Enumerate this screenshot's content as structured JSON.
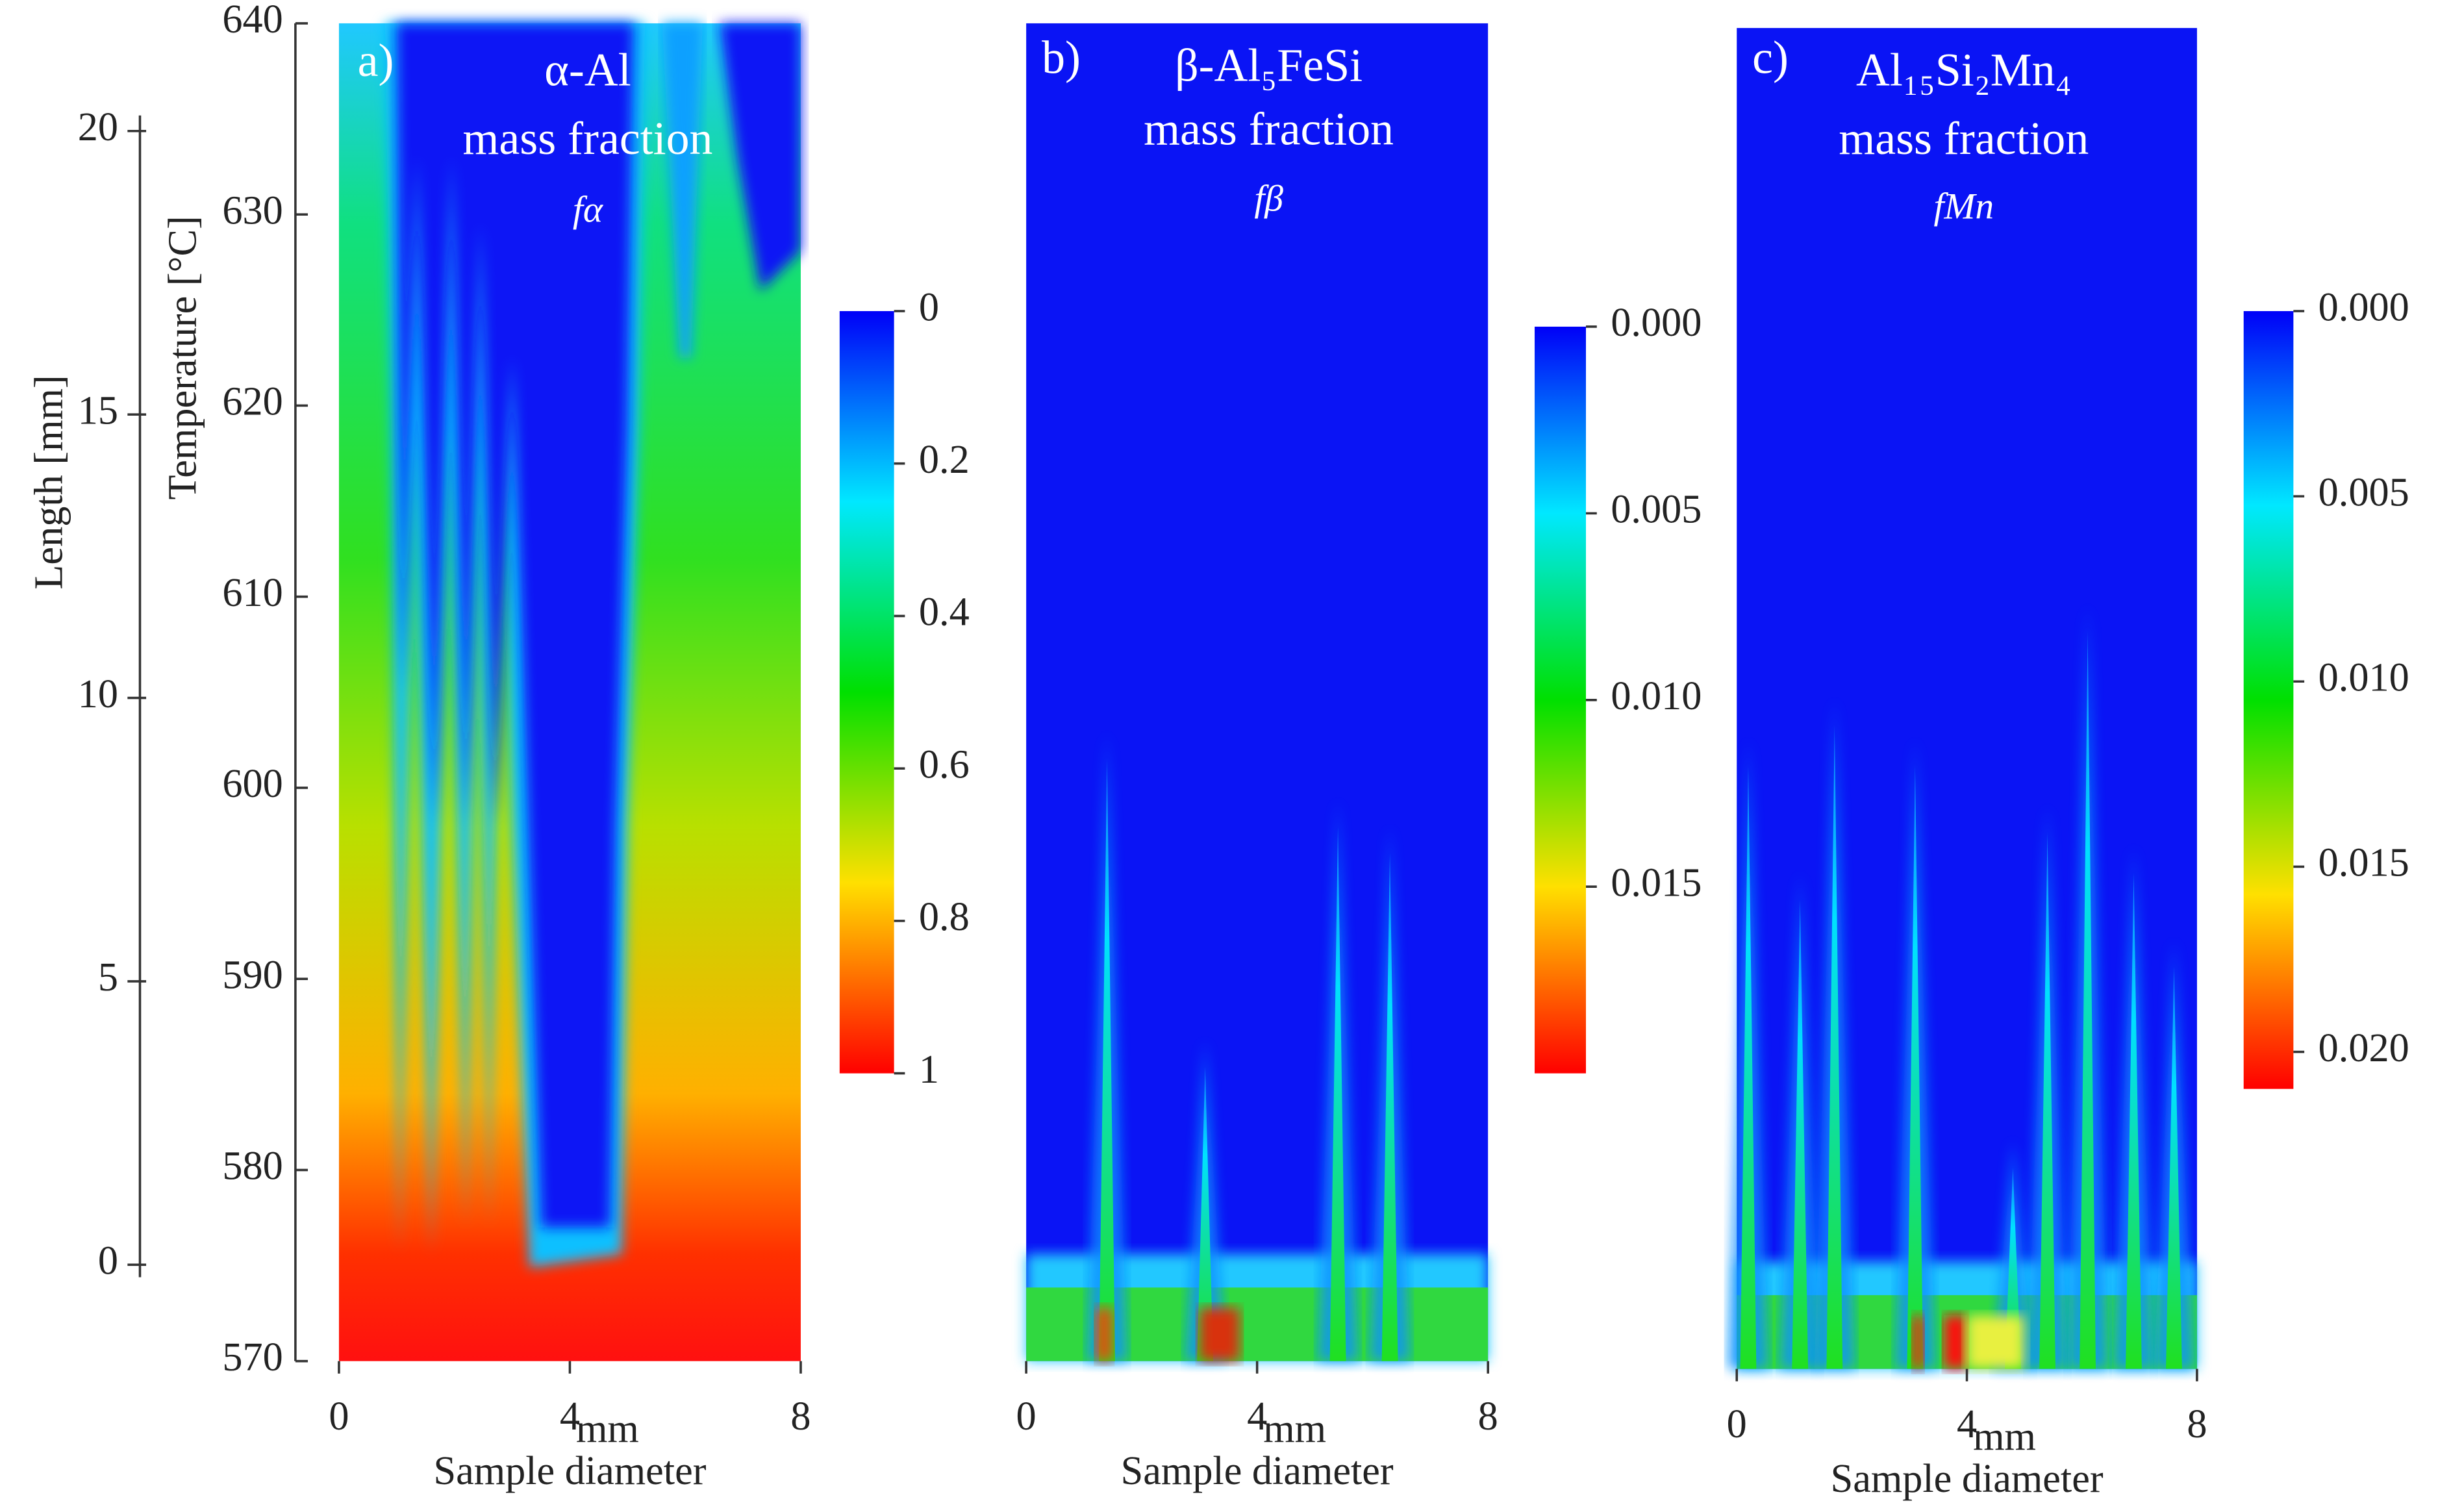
{
  "chart_data": [
    {
      "type": "heatmap",
      "panel_label": "a)",
      "title": [
        "α-Al",
        "mass fraction",
        "fα"
      ],
      "xlabel": "Sample diameter",
      "xunit": "mm",
      "xlim": [
        0,
        8
      ],
      "xticks": [
        0,
        4,
        8
      ],
      "ylabel": "Temperature [°C]",
      "ylim": [
        570,
        640
      ],
      "yticks": [
        570,
        580,
        590,
        600,
        610,
        620,
        630,
        640
      ],
      "y2label": "Length [mm]",
      "y2lim": [
        -1.7,
        21.9
      ],
      "y2ticks": [
        0,
        5,
        10,
        15,
        20
      ],
      "colorbar": {
        "clim": [
          0,
          1
        ],
        "ticks": [
          0,
          0.2,
          0.4,
          0.6,
          0.8,
          1
        ],
        "colormap": [
          "#0000f8",
          "#00e8ff",
          "#00e000",
          "#ffe000",
          "#ff0000"
        ]
      }
    },
    {
      "type": "heatmap",
      "panel_label": "b)",
      "title": [
        "β-Al₅FeSi",
        "mass fraction",
        "fβ"
      ],
      "xlabel": "Sample diameter",
      "xunit": "mm",
      "xlim": [
        0,
        8
      ],
      "xticks": [
        0,
        4,
        8
      ],
      "colorbar": {
        "clim": [
          0,
          0.02
        ],
        "ticks": [
          {
            "value": 0,
            "label": "0.000"
          },
          {
            "value": 0.005,
            "label": "0.005"
          },
          {
            "value": 0.01,
            "label": "0.010"
          },
          {
            "value": 0.015,
            "label": "0.015"
          }
        ],
        "colormap": [
          "#0000f8",
          "#00e8ff",
          "#00e000",
          "#ffe000",
          "#ff0000"
        ]
      }
    },
    {
      "type": "heatmap",
      "panel_label": "c)",
      "title": [
        "Al₁₅Si₂Mn₄",
        "mass fraction",
        "fMn"
      ],
      "xlabel": "Sample diameter",
      "xunit": "mm",
      "xlim": [
        0,
        8
      ],
      "xticks": [
        0,
        4,
        8
      ],
      "colorbar": {
        "clim": [
          0,
          0.021
        ],
        "ticks": [
          {
            "value": 0,
            "label": "0.000"
          },
          {
            "value": 0.005,
            "label": "0.005"
          },
          {
            "value": 0.01,
            "label": "0.010"
          },
          {
            "value": 0.015,
            "label": "0.015"
          },
          {
            "value": 0.02,
            "label": "0.020"
          }
        ],
        "colormap": [
          "#0000f8",
          "#00e8ff",
          "#00e000",
          "#ffe000",
          "#ff0000"
        ]
      }
    }
  ]
}
